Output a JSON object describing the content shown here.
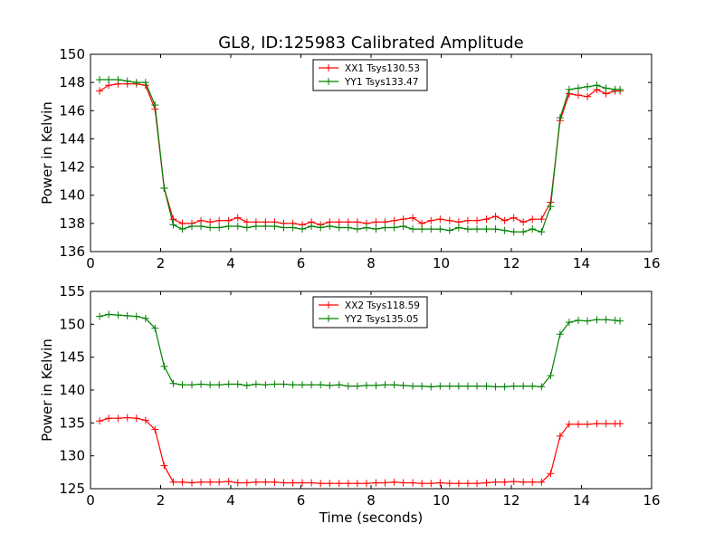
{
  "figure": {
    "title": "GL8, ID:125983 Calibrated Amplitude"
  },
  "chart_data": [
    {
      "type": "line",
      "title": "GL8, ID:125983 Calibrated Amplitude",
      "xlabel": "",
      "ylabel": "Power in Kelvin",
      "xlim": [
        0,
        16
      ],
      "ylim": [
        136,
        150
      ],
      "xticks": [
        0,
        2,
        4,
        6,
        8,
        10,
        12,
        14,
        16
      ],
      "yticks": [
        136,
        138,
        140,
        142,
        144,
        146,
        148,
        150
      ],
      "grid": false,
      "legend_position": "top-center",
      "x": [
        0.26,
        0.52,
        0.79,
        1.05,
        1.31,
        1.57,
        1.84,
        2.1,
        2.36,
        2.62,
        2.89,
        3.15,
        3.41,
        3.67,
        3.94,
        4.2,
        4.46,
        4.72,
        4.99,
        5.25,
        5.51,
        5.77,
        6.04,
        6.3,
        6.56,
        6.82,
        7.09,
        7.35,
        7.61,
        7.87,
        8.14,
        8.4,
        8.66,
        8.92,
        9.19,
        9.45,
        9.71,
        9.97,
        10.24,
        10.5,
        10.76,
        11.02,
        11.29,
        11.55,
        11.81,
        12.07,
        12.34,
        12.6,
        12.86,
        13.12,
        13.39,
        13.65,
        13.91,
        14.17,
        14.44,
        14.7,
        14.96,
        15.1
      ],
      "series": [
        {
          "name": "XX1 Tsys130.53",
          "color": "#ff0000",
          "values": [
            147.4,
            147.8,
            147.9,
            147.9,
            147.9,
            147.8,
            146.1,
            140.5,
            138.3,
            138.0,
            138.0,
            138.2,
            138.1,
            138.2,
            138.2,
            138.4,
            138.1,
            138.1,
            138.1,
            138.1,
            138.0,
            138.0,
            137.9,
            138.1,
            137.9,
            138.1,
            138.1,
            138.1,
            138.1,
            138.0,
            138.1,
            138.1,
            138.2,
            138.3,
            138.4,
            138.0,
            138.2,
            138.3,
            138.2,
            138.1,
            138.2,
            138.2,
            138.3,
            138.5,
            138.2,
            138.4,
            138.1,
            138.3,
            138.3,
            139.5,
            145.3,
            147.2,
            147.1,
            147.0,
            147.5,
            147.2,
            147.4,
            147.4
          ]
        },
        {
          "name": "YY1 Tsys133.47",
          "color": "#008000",
          "values": [
            148.2,
            148.2,
            148.2,
            148.1,
            148.0,
            148.0,
            146.4,
            140.5,
            137.9,
            137.6,
            137.8,
            137.8,
            137.7,
            137.7,
            137.8,
            137.8,
            137.7,
            137.8,
            137.8,
            137.8,
            137.7,
            137.7,
            137.6,
            137.8,
            137.7,
            137.8,
            137.7,
            137.7,
            137.6,
            137.7,
            137.6,
            137.7,
            137.7,
            137.8,
            137.6,
            137.6,
            137.6,
            137.6,
            137.5,
            137.7,
            137.6,
            137.6,
            137.6,
            137.6,
            137.5,
            137.4,
            137.4,
            137.6,
            137.4,
            139.2,
            145.5,
            147.5,
            147.6,
            147.7,
            147.8,
            147.6,
            147.5,
            147.5
          ]
        }
      ]
    },
    {
      "type": "line",
      "title": "",
      "xlabel": "Time (seconds)",
      "ylabel": "Power in Kelvin",
      "xlim": [
        0,
        16
      ],
      "ylim": [
        125,
        155
      ],
      "xticks": [
        0,
        2,
        4,
        6,
        8,
        10,
        12,
        14,
        16
      ],
      "yticks": [
        125,
        130,
        135,
        140,
        145,
        150,
        155
      ],
      "grid": false,
      "legend_position": "top-center",
      "x": [
        0.26,
        0.52,
        0.79,
        1.05,
        1.31,
        1.57,
        1.84,
        2.1,
        2.36,
        2.62,
        2.89,
        3.15,
        3.41,
        3.67,
        3.94,
        4.2,
        4.46,
        4.72,
        4.99,
        5.25,
        5.51,
        5.77,
        6.04,
        6.3,
        6.56,
        6.82,
        7.09,
        7.35,
        7.61,
        7.87,
        8.14,
        8.4,
        8.66,
        8.92,
        9.19,
        9.45,
        9.71,
        9.97,
        10.24,
        10.5,
        10.76,
        11.02,
        11.29,
        11.55,
        11.81,
        12.07,
        12.34,
        12.6,
        12.86,
        13.12,
        13.39,
        13.65,
        13.91,
        14.17,
        14.44,
        14.7,
        14.96,
        15.1
      ],
      "series": [
        {
          "name": "XX2 Tsys118.59",
          "color": "#ff0000",
          "values": [
            135.3,
            135.7,
            135.7,
            135.8,
            135.7,
            135.4,
            134.0,
            128.5,
            126.0,
            126.0,
            125.9,
            126.0,
            126.0,
            126.0,
            126.1,
            125.9,
            125.9,
            126.0,
            126.0,
            126.0,
            125.9,
            125.9,
            125.9,
            125.9,
            125.8,
            125.8,
            125.8,
            125.8,
            125.8,
            125.8,
            125.9,
            125.9,
            126.0,
            125.9,
            125.9,
            125.8,
            125.8,
            125.9,
            125.8,
            125.8,
            125.8,
            125.8,
            125.9,
            126.0,
            126.0,
            126.1,
            126.0,
            126.0,
            126.0,
            127.3,
            133.0,
            134.8,
            134.8,
            134.8,
            134.9,
            134.9,
            134.9,
            134.9
          ]
        },
        {
          "name": "YY2 Tsys135.05",
          "color": "#008000",
          "values": [
            151.2,
            151.5,
            151.4,
            151.3,
            151.2,
            150.9,
            149.4,
            143.6,
            141.0,
            140.8,
            140.8,
            140.9,
            140.8,
            140.8,
            140.9,
            140.9,
            140.7,
            140.9,
            140.8,
            140.9,
            140.9,
            140.8,
            140.8,
            140.8,
            140.8,
            140.7,
            140.8,
            140.6,
            140.6,
            140.7,
            140.7,
            140.8,
            140.8,
            140.7,
            140.6,
            140.6,
            140.5,
            140.6,
            140.6,
            140.6,
            140.6,
            140.6,
            140.6,
            140.5,
            140.5,
            140.6,
            140.6,
            140.6,
            140.5,
            142.2,
            148.5,
            150.3,
            150.6,
            150.5,
            150.7,
            150.7,
            150.6,
            150.5
          ]
        }
      ]
    }
  ]
}
